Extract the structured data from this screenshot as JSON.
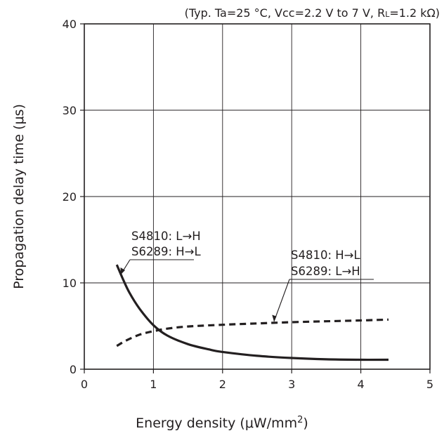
{
  "chart_data": {
    "type": "line",
    "title": "",
    "conditions_note": {
      "prefix": "(Typ. Ta=25 °C, Vcc=2.2 V to 7 V, R",
      "subscript": "L",
      "suffix": "=1.2 kΩ)"
    },
    "xlabel": {
      "main": "Energy density (μW/mm",
      "superscript": "2",
      "tail": ")"
    },
    "ylabel": "Propagation delay time (μs)",
    "xlim": [
      0,
      5
    ],
    "ylim": [
      0,
      40
    ],
    "x_ticks": [
      "0",
      "1",
      "2",
      "3",
      "4",
      "5"
    ],
    "y_ticks": [
      "0",
      "10",
      "20",
      "30",
      "40"
    ],
    "grid": true,
    "series": [
      {
        "labels": [
          "S4810: L→H",
          "S6289: H→L"
        ],
        "style": "solid",
        "points": [
          [
            0.47,
            12.1
          ],
          [
            0.55,
            10.6
          ],
          [
            0.65,
            8.9
          ],
          [
            0.8,
            7.0
          ],
          [
            1.0,
            5.1
          ],
          [
            1.2,
            3.9
          ],
          [
            1.5,
            2.9
          ],
          [
            1.8,
            2.3
          ],
          [
            2.0,
            2.0
          ],
          [
            2.5,
            1.55
          ],
          [
            3.0,
            1.3
          ],
          [
            3.5,
            1.15
          ],
          [
            4.0,
            1.1
          ],
          [
            4.4,
            1.1
          ]
        ]
      },
      {
        "labels": [
          "S4810: H→L",
          "S6289: L→H"
        ],
        "style": "dashed",
        "points": [
          [
            0.47,
            2.7
          ],
          [
            0.6,
            3.3
          ],
          [
            0.8,
            4.0
          ],
          [
            1.0,
            4.4
          ],
          [
            1.2,
            4.7
          ],
          [
            1.5,
            4.95
          ],
          [
            2.0,
            5.15
          ],
          [
            2.5,
            5.3
          ],
          [
            3.0,
            5.45
          ],
          [
            3.5,
            5.55
          ],
          [
            4.0,
            5.65
          ],
          [
            4.4,
            5.75
          ]
        ]
      }
    ]
  }
}
